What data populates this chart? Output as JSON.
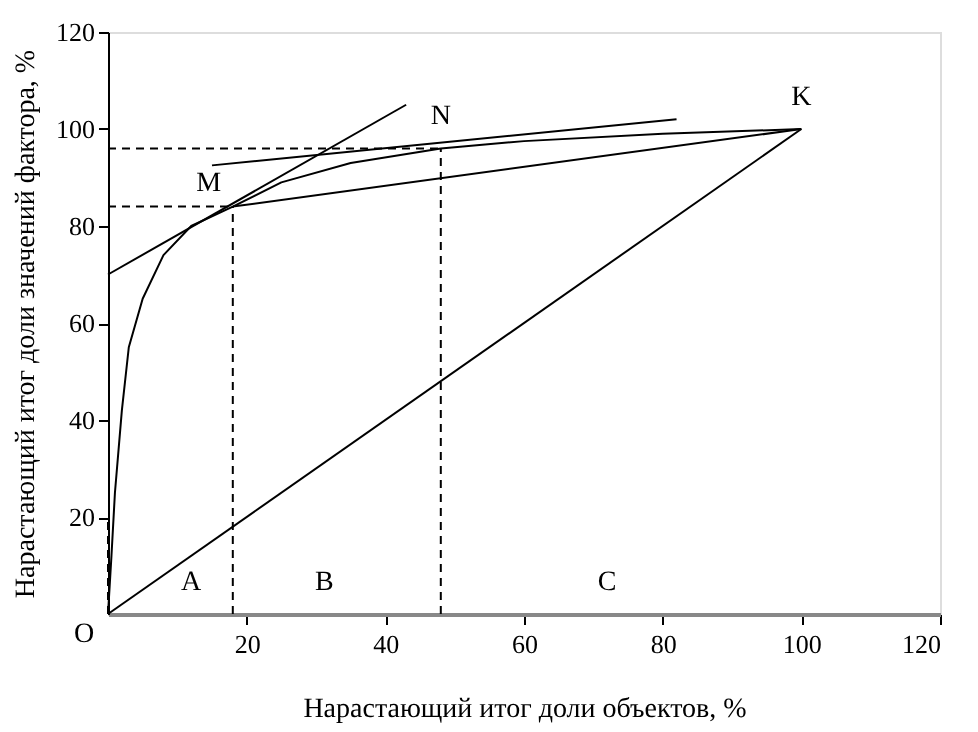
{
  "chart_data": {
    "type": "line",
    "xlabel": "Нарастающий итог доли объектов, %",
    "ylabel": "Нарастающий итог доли значений фактора, %",
    "xlim": [
      0,
      120
    ],
    "ylim": [
      0,
      120
    ],
    "xticks": [
      20,
      40,
      60,
      80,
      100,
      120
    ],
    "yticks": [
      20,
      40,
      60,
      80,
      100,
      120
    ],
    "grid": false,
    "marker": "none",
    "series": [
      {
        "color": "#000000",
        "line_style": "solid",
        "x": [
          0,
          0.5,
          1,
          2,
          3,
          5,
          8,
          12,
          18,
          25,
          35,
          48,
          60,
          80,
          100
        ],
        "values": [
          0,
          12,
          25,
          42,
          55,
          65,
          74,
          80,
          84,
          89,
          93,
          96,
          97.5,
          99,
          100
        ]
      },
      {
        "color": "#000000",
        "line_style": "solid",
        "x": [
          0,
          43
        ],
        "values": [
          70,
          105
        ]
      },
      {
        "color": "#000000",
        "line_style": "solid",
        "x": [
          15,
          82
        ],
        "values": [
          92.5,
          102
        ]
      },
      {
        "color": "#000000",
        "line_style": "solid",
        "x": [
          18,
          100
        ],
        "values": [
          84,
          100
        ]
      },
      {
        "color": "#000000",
        "line_style": "solid",
        "x": [
          0,
          100
        ],
        "values": [
          0,
          100
        ]
      },
      {
        "color": "#000000",
        "line_style": "dashed",
        "x": [
          18,
          18
        ],
        "values": [
          0,
          84
        ]
      },
      {
        "color": "#000000",
        "line_style": "dashed",
        "x": [
          48,
          48
        ],
        "values": [
          0,
          96
        ]
      },
      {
        "color": "#000000",
        "line_style": "dashed",
        "x": [
          0,
          18
        ],
        "values": [
          84,
          84
        ]
      },
      {
        "color": "#000000",
        "line_style": "dashed",
        "x": [
          0,
          48
        ],
        "values": [
          96,
          96
        ]
      },
      {
        "color": "#000000",
        "line_style": "dashed",
        "x": [
          0,
          0
        ],
        "values": [
          0,
          20
        ]
      }
    ],
    "annotations": [
      {
        "text": "O",
        "x": 0,
        "y": 0
      },
      {
        "text": "M",
        "x": 18,
        "y": 84
      },
      {
        "text": "N",
        "x": 48,
        "y": 96
      },
      {
        "text": "K",
        "x": 100,
        "y": 100
      },
      "A",
      "B",
      "C"
    ]
  }
}
